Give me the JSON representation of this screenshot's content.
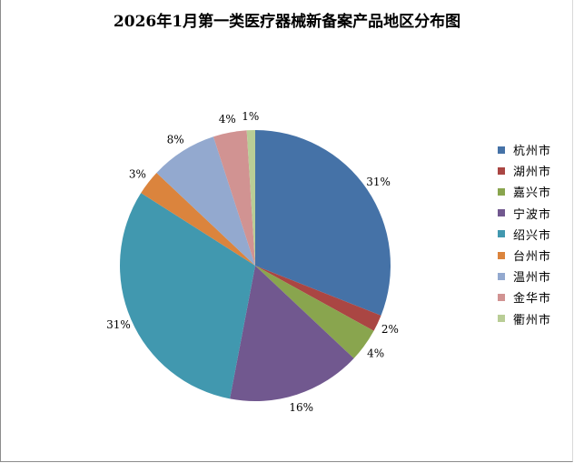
{
  "chart_data": {
    "type": "pie",
    "title": "2026年1月第一类医疗器械新备案产品地区分布图",
    "categories": [
      "杭州市",
      "湖州市",
      "嘉兴市",
      "宁波市",
      "绍兴市",
      "台州市",
      "温州市",
      "金华市",
      "衢州市"
    ],
    "values": [
      31,
      2,
      4,
      16,
      31,
      3,
      8,
      4,
      1
    ],
    "labels": [
      "31%",
      "2%",
      "4%",
      "16%",
      "31%",
      "3%",
      "8%",
      "4%",
      "1%"
    ],
    "colors": [
      "#4572a7",
      "#aa4643",
      "#89a54e",
      "#71588f",
      "#4198af",
      "#db843d",
      "#93a9cf",
      "#d19392",
      "#b9cd96"
    ],
    "legend_position": "right"
  }
}
